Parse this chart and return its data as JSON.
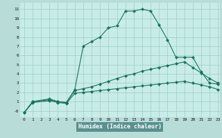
{
  "xlabel": "Humidex (Indice chaleur)",
  "bg_color": "#b8ddd8",
  "plot_bg_color": "#c8ece8",
  "line_color": "#1a7060",
  "grid_color": "#9dccc8",
  "xlabel_bg": "#5a9090",
  "xlim": [
    -0.5,
    23.2
  ],
  "ylim": [
    -0.7,
    11.7
  ],
  "xticks": [
    0,
    1,
    2,
    3,
    4,
    5,
    6,
    7,
    8,
    9,
    10,
    11,
    12,
    13,
    14,
    15,
    16,
    17,
    18,
    19,
    20,
    21,
    22,
    23
  ],
  "yticks": [
    0,
    1,
    2,
    3,
    4,
    5,
    6,
    7,
    8,
    9,
    10,
    11
  ],
  "ytick_labels": [
    "-0",
    "1",
    "2",
    "3",
    "4",
    "5",
    "6",
    "7",
    "8",
    "9",
    "10",
    "11"
  ],
  "line1_x": [
    0,
    1,
    3,
    4,
    5,
    6,
    7,
    8,
    9,
    10,
    11,
    12,
    13,
    14,
    15,
    16,
    17,
    18,
    19,
    20,
    21,
    22,
    23
  ],
  "line1_y": [
    -0.2,
    1.0,
    1.3,
    1.0,
    0.9,
    2.3,
    7.0,
    7.5,
    8.0,
    9.0,
    9.2,
    10.8,
    10.8,
    11.0,
    10.8,
    9.3,
    7.7,
    5.8,
    5.8,
    5.8,
    4.2,
    3.0,
    2.9
  ],
  "line2_x": [
    0,
    1,
    3,
    4,
    5,
    6,
    7,
    8,
    9,
    10,
    11,
    12,
    13,
    14,
    15,
    16,
    17,
    18,
    19,
    20,
    21,
    22,
    23
  ],
  "line2_y": [
    -0.2,
    1.0,
    1.2,
    1.0,
    0.9,
    2.2,
    2.4,
    2.6,
    2.9,
    3.2,
    3.5,
    3.8,
    4.0,
    4.3,
    4.5,
    4.7,
    4.9,
    5.1,
    5.3,
    4.7,
    4.1,
    3.5,
    3.0
  ],
  "line3_x": [
    0,
    1,
    3,
    4,
    5,
    6,
    7,
    8,
    9,
    10,
    11,
    12,
    13,
    14,
    15,
    16,
    17,
    18,
    19,
    20,
    21,
    22,
    23
  ],
  "line3_y": [
    -0.2,
    0.9,
    1.1,
    0.9,
    0.8,
    1.9,
    2.0,
    2.1,
    2.2,
    2.3,
    2.4,
    2.5,
    2.6,
    2.7,
    2.8,
    2.9,
    3.0,
    3.1,
    3.2,
    3.0,
    2.8,
    2.6,
    2.3
  ]
}
